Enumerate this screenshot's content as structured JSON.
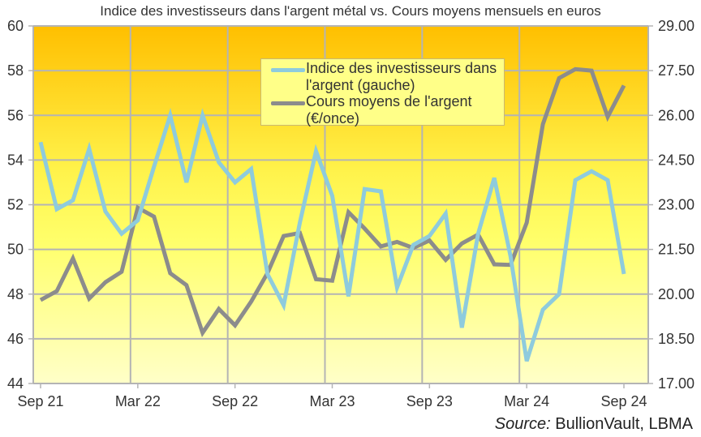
{
  "chart_data": {
    "type": "line",
    "title": "Indice des investisseurs dans l'argent métal vs. Cours moyens mensuels en euros",
    "source_label_italic": "Source:",
    "source_label_rest": " BullionVault, LBMA",
    "xlabel": "",
    "x": [
      "Sep 21",
      "Oct 21",
      "Nov 21",
      "Dec 21",
      "Jan 22",
      "Feb 22",
      "Mar 22",
      "Apr 22",
      "May 22",
      "Jun 22",
      "Jul 22",
      "Aug 22",
      "Sep 22",
      "Oct 22",
      "Nov 22",
      "Dec 22",
      "Jan 23",
      "Feb 23",
      "Mar 23",
      "Apr 23",
      "May 23",
      "Jun 23",
      "Jul 23",
      "Aug 23",
      "Sep 23",
      "Oct 23",
      "Nov 23",
      "Dec 23",
      "Jan 24",
      "Feb 24",
      "Mar 24",
      "Apr 24",
      "May 24",
      "Jun 24",
      "Jul 24",
      "Aug 24",
      "Sep 24"
    ],
    "x_tick_labels": [
      "Sep 21",
      "Mar 22",
      "Sep 22",
      "Mar 23",
      "Sep 23",
      "Mar 24",
      "Sep 24"
    ],
    "y_left": {
      "label": "Indice des investisseurs (gauche)",
      "range": [
        44,
        60
      ],
      "ticks": [
        44,
        46,
        48,
        50,
        52,
        54,
        56,
        58,
        60
      ]
    },
    "y_right": {
      "label": "€/once",
      "range": [
        17.0,
        29.0
      ],
      "ticks": [
        "17.00",
        "18.50",
        "20.00",
        "21.50",
        "23.00",
        "24.50",
        "26.00",
        "27.50",
        "29.00"
      ]
    },
    "grid": true,
    "legend_position": "top-center inside plot",
    "series": [
      {
        "name": "Indice des investisseurs dans l'argent (gauche)",
        "legend_label": "Indice des investisseurs dans\nl'argent (gauche)",
        "axis": "left",
        "color": "#8ecbdd",
        "values": [
          54.8,
          51.8,
          52.2,
          54.5,
          51.7,
          50.7,
          51.3,
          53.7,
          56.0,
          53.0,
          56.0,
          53.9,
          53.0,
          53.6,
          48.9,
          47.5,
          51.2,
          54.4,
          52.4,
          47.9,
          52.7,
          52.6,
          48.3,
          50.2,
          50.6,
          51.6,
          46.5,
          50.7,
          53.2,
          49.7,
          45.0,
          47.3,
          48.0,
          53.1,
          53.5,
          53.1,
          48.9
        ]
      },
      {
        "name": "Cours moyens de l'argent (€/once)",
        "legend_label": "Cours moyens de l'argent\n(€/once)",
        "axis": "right",
        "color": "#8c8c8c",
        "values": [
          19.8,
          20.1,
          21.2,
          19.85,
          20.4,
          20.75,
          22.9,
          22.6,
          20.7,
          20.3,
          18.7,
          19.5,
          18.95,
          19.75,
          20.7,
          21.95,
          22.05,
          20.5,
          20.45,
          22.75,
          22.2,
          21.6,
          21.75,
          21.55,
          21.8,
          21.15,
          21.7,
          22.0,
          21.0,
          20.98,
          22.4,
          25.7,
          27.25,
          27.55,
          27.5,
          25.95,
          27.0
        ]
      }
    ],
    "colors": {
      "background_top": "#ffc000",
      "background_mid": "#ffff60",
      "background_bottom": "#ffffd0",
      "grid": "#b4b4b4",
      "legend_bg": "#ffff88"
    }
  }
}
